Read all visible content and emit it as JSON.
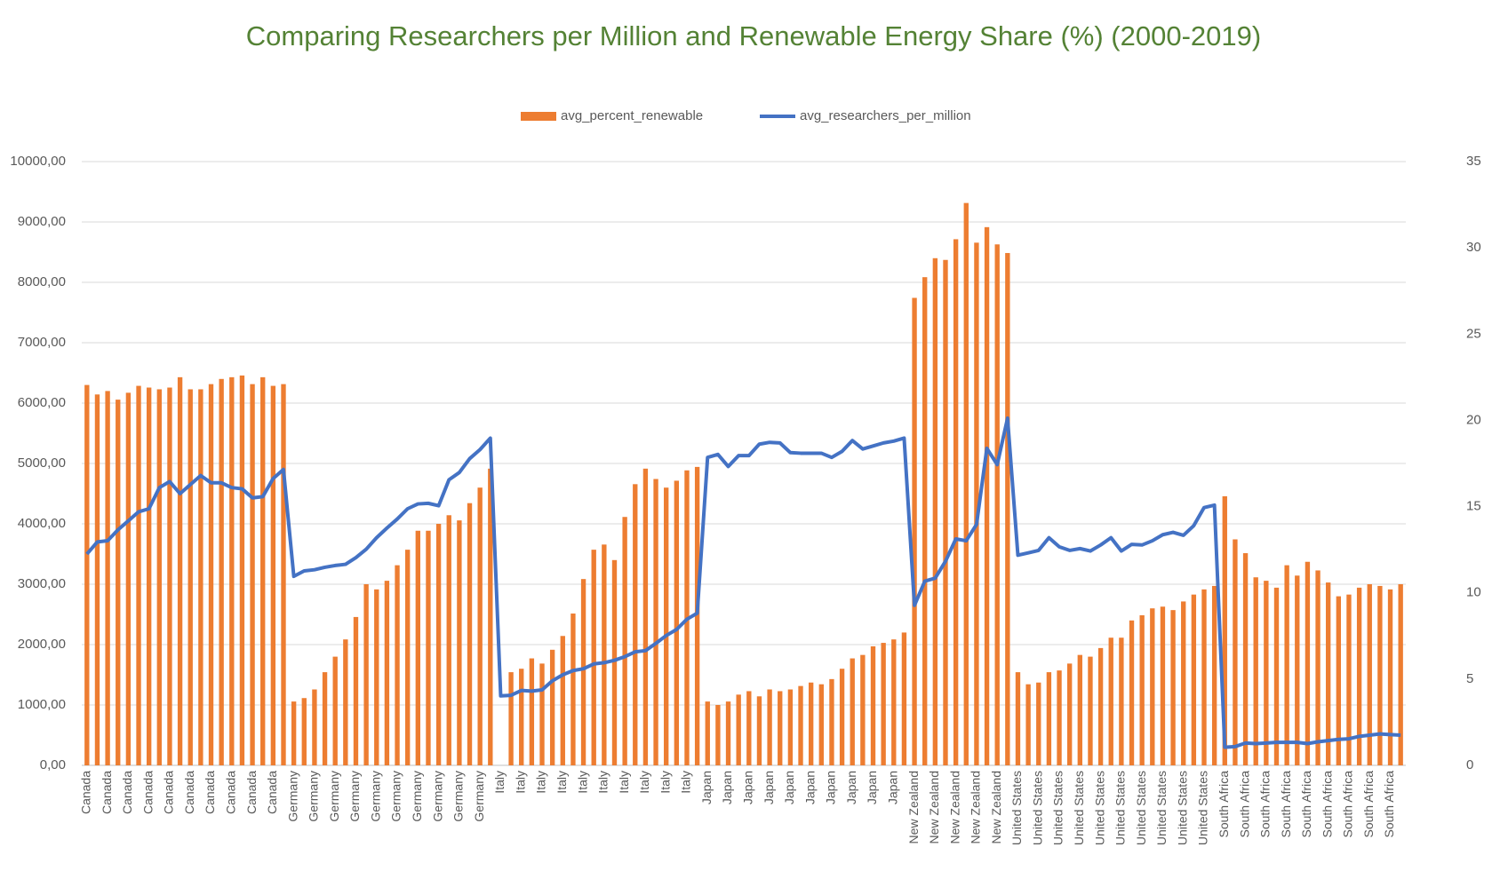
{
  "chart_data": {
    "type": "bar-line",
    "title": "Comparing Researchers per Million and Renewable Energy Share (%) (2000-2019)",
    "categories": [
      "Canada",
      null,
      "Canada",
      null,
      "Canada",
      null,
      "Canada",
      null,
      "Canada",
      null,
      "Canada",
      null,
      "Canada",
      null,
      "Canada",
      null,
      "Canada",
      null,
      "Canada",
      null,
      "Germany",
      null,
      "Germany",
      null,
      "Germany",
      null,
      "Germany",
      null,
      "Germany",
      null,
      "Germany",
      null,
      "Germany",
      null,
      "Germany",
      null,
      "Germany",
      null,
      "Germany",
      null,
      "Italy",
      null,
      "Italy",
      null,
      "Italy",
      null,
      "Italy",
      null,
      "Italy",
      null,
      "Italy",
      null,
      "Italy",
      null,
      "Italy",
      null,
      "Italy",
      null,
      "Italy",
      null,
      "Japan",
      null,
      "Japan",
      null,
      "Japan",
      null,
      "Japan",
      null,
      "Japan",
      null,
      "Japan",
      null,
      "Japan",
      null,
      "Japan",
      null,
      "Japan",
      null,
      "Japan",
      null,
      "New Zealand",
      null,
      "New Zealand",
      null,
      "New Zealand",
      null,
      "New Zealand",
      null,
      "New Zealand",
      null,
      "United States",
      null,
      "United States",
      null,
      "United States",
      null,
      "United States",
      null,
      "United States",
      null,
      "United States",
      null,
      "United States",
      null,
      "United States",
      null,
      "United States",
      null,
      "United States",
      null,
      "South Africa",
      null,
      "South Africa",
      null,
      "South Africa",
      null,
      "South Africa",
      null,
      "South Africa",
      null,
      "South Africa",
      null,
      "South Africa",
      null,
      "South Africa",
      null,
      "South Africa",
      null
    ],
    "series": [
      {
        "name": "avg_percent_renewable",
        "color": "#ed7d31",
        "kind": "bar",
        "axis": "y2",
        "values": [
          22.05,
          21.5,
          21.7,
          21.2,
          21.6,
          22.0,
          21.9,
          21.8,
          21.9,
          22.5,
          21.8,
          21.8,
          22.1,
          22.4,
          22.5,
          22.6,
          22.1,
          22.5,
          22.0,
          22.1,
          3.7,
          3.9,
          4.4,
          5.4,
          6.3,
          7.3,
          8.6,
          10.5,
          10.2,
          10.7,
          11.6,
          12.5,
          13.6,
          13.6,
          14.0,
          14.5,
          14.2,
          15.2,
          16.1,
          17.2,
          null,
          5.4,
          5.6,
          6.2,
          5.9,
          6.7,
          7.5,
          8.8,
          10.8,
          12.5,
          12.8,
          11.9,
          14.4,
          16.3,
          17.2,
          16.6,
          16.1,
          16.5,
          17.1,
          17.3,
          3.7,
          3.5,
          3.7,
          4.1,
          4.3,
          4.0,
          4.4,
          4.3,
          4.4,
          4.6,
          4.8,
          4.7,
          5.0,
          5.6,
          6.2,
          6.4,
          6.9,
          7.1,
          7.3,
          7.7,
          27.1,
          28.3,
          29.4,
          29.3,
          30.5,
          32.6,
          30.3,
          31.2,
          30.2,
          29.7,
          5.4,
          4.7,
          4.8,
          5.4,
          5.5,
          5.9,
          6.4,
          6.3,
          6.8,
          7.4,
          7.4,
          8.4,
          8.7,
          9.1,
          9.2,
          9.0,
          9.5,
          9.9,
          10.2,
          10.4,
          15.6,
          13.1,
          12.3,
          10.9,
          10.7,
          10.3,
          11.6,
          11.0,
          11.8,
          11.3,
          10.6,
          9.8,
          9.9,
          10.3,
          10.5,
          10.4,
          10.2,
          10.5
        ]
      },
      {
        "name": "avg_researchers_per_million",
        "color": "#4472c4",
        "kind": "line",
        "values": [
          3500,
          3700,
          3720,
          3900,
          4050,
          4200,
          4250,
          4600,
          4700,
          4500,
          4650,
          4800,
          4680,
          4680,
          4600,
          4580,
          4430,
          4450,
          4750,
          4900,
          3130,
          3220,
          3240,
          3280,
          3310,
          3330,
          3440,
          3580,
          3770,
          3930,
          4080,
          4250,
          4330,
          4340,
          4300,
          4730,
          4850,
          5080,
          5230,
          5420,
          1150,
          1160,
          1240,
          1230,
          1250,
          1400,
          1500,
          1570,
          1600,
          1680,
          1700,
          1740,
          1800,
          1880,
          1900,
          2020,
          2150,
          2250,
          2420,
          2520,
          5100,
          5150,
          4950,
          5130,
          5130,
          5320,
          5350,
          5340,
          5180,
          5170,
          5170,
          5170,
          5100,
          5200,
          5380,
          5240,
          5290,
          5340,
          5370,
          5420,
          2650,
          3050,
          3100,
          3380,
          3750,
          3720,
          3990,
          5250,
          4980,
          5750,
          3480,
          3520,
          3560,
          3770,
          3620,
          3560,
          3590,
          3550,
          3650,
          3770,
          3550,
          3660,
          3650,
          3720,
          3820,
          3860,
          3810,
          3970,
          4270,
          4310,
          300,
          310,
          370,
          360,
          370,
          380,
          380,
          380,
          360,
          390,
          410,
          430,
          440,
          480,
          500,
          520,
          510,
          500
        ]
      }
    ],
    "ylim": [
      0,
      10000
    ],
    "yticks": [
      {
        "value": 0,
        "label": "0,00"
      },
      {
        "value": 1000,
        "label": "1000,00"
      },
      {
        "value": 2000,
        "label": "2000,00"
      },
      {
        "value": 3000,
        "label": "3000,00"
      },
      {
        "value": 4000,
        "label": "4000,00"
      },
      {
        "value": 5000,
        "label": "5000,00"
      },
      {
        "value": 6000,
        "label": "6000,00"
      },
      {
        "value": 7000,
        "label": "7000,00"
      },
      {
        "value": 8000,
        "label": "8000,00"
      },
      {
        "value": 9000,
        "label": "9000,00"
      },
      {
        "value": 10000,
        "label": "10000,00"
      }
    ],
    "y2lim": [
      0,
      35
    ],
    "y2ticks": [
      0,
      5,
      10,
      15,
      20,
      25,
      30,
      35
    ],
    "grid": true,
    "legend": "top"
  }
}
